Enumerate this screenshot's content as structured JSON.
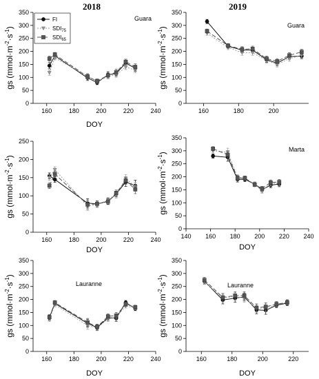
{
  "years": [
    "2018",
    "2019"
  ],
  "legend": [
    {
      "series": "FI",
      "label": "FI",
      "sub": ""
    },
    {
      "series": "SDI75",
      "label": "SDI",
      "sub": "75"
    },
    {
      "series": "SDI65",
      "label": "SDI",
      "sub": "65"
    }
  ],
  "series_styles": {
    "FI": {
      "color": "#111111",
      "dash": "",
      "marker": "circle",
      "fill": "#111111"
    },
    "SDI75": {
      "color": "#9a9a9a",
      "dash": "2,2",
      "marker": "triangle-down",
      "fill": "#9a9a9a"
    },
    "SDI65": {
      "color": "#555555",
      "dash": "6,3",
      "marker": "square",
      "fill": "#555555"
    }
  },
  "chart_data": [
    {
      "type": "line",
      "title": "Guara",
      "xlabel": "DOY",
      "ylabel": "gs (mmol·m",
      "xlim": [
        150,
        240
      ],
      "ylim": [
        0,
        350
      ],
      "xticks": [
        160,
        180,
        200,
        220,
        240
      ],
      "yticks": [
        0,
        50,
        100,
        150,
        200,
        250,
        300,
        350
      ],
      "series": [
        {
          "name": "FI",
          "x": [
            162,
            166,
            190,
            197,
            205,
            211,
            218,
            225
          ],
          "y": [
            145,
            183,
            98,
            80,
            110,
            115,
            155,
            135
          ],
          "err": [
            12,
            8,
            10,
            8,
            12,
            10,
            10,
            12
          ]
        },
        {
          "name": "SDI75",
          "x": [
            162,
            166,
            190,
            197,
            205,
            211,
            218,
            225
          ],
          "y": [
            118,
            175,
            105,
            85,
            104,
            110,
            140,
            128
          ],
          "err": [
            10,
            8,
            10,
            8,
            10,
            10,
            10,
            10
          ]
        },
        {
          "name": "SDI65",
          "x": [
            162,
            166,
            190,
            197,
            205,
            211,
            218,
            225
          ],
          "y": [
            172,
            188,
            103,
            86,
            108,
            120,
            160,
            140
          ],
          "err": [
            10,
            8,
            10,
            8,
            10,
            12,
            10,
            12
          ]
        }
      ]
    },
    {
      "type": "line",
      "title": "Guara",
      "xlabel": "",
      "ylabel": "gs (mmol·m",
      "xlim": [
        150,
        220
      ],
      "ylim": [
        0,
        350
      ],
      "xticks": [
        160,
        180,
        200
      ],
      "yticks": [
        0,
        50,
        100,
        150,
        200,
        250,
        300,
        350
      ],
      "series": [
        {
          "name": "FI",
          "x": [
            162,
            174,
            182,
            188,
            196,
            202,
            209,
            216
          ],
          "y": [
            315,
            220,
            205,
            205,
            168,
            155,
            180,
            182
          ],
          "err": [
            8,
            8,
            10,
            10,
            10,
            10,
            10,
            10
          ]
        },
        {
          "name": "SDI75",
          "x": [
            162,
            174,
            182,
            188,
            196,
            202,
            209,
            216
          ],
          "y": [
            270,
            215,
            195,
            195,
            165,
            150,
            172,
            185
          ],
          "err": [
            8,
            8,
            10,
            10,
            10,
            10,
            10,
            10
          ]
        },
        {
          "name": "SDI65",
          "x": [
            162,
            174,
            182,
            188,
            196,
            202,
            209,
            216
          ],
          "y": [
            278,
            222,
            208,
            210,
            172,
            162,
            185,
            198
          ],
          "err": [
            8,
            8,
            10,
            10,
            10,
            10,
            10,
            10
          ]
        }
      ]
    },
    {
      "type": "line",
      "title": "",
      "xlabel": "DOY",
      "ylabel": "gs (mmol·m",
      "xlim": [
        150,
        240
      ],
      "ylim": [
        0,
        250
      ],
      "xticks": [
        160,
        180,
        200,
        220,
        240
      ],
      "yticks": [
        0,
        50,
        100,
        150,
        200,
        250
      ],
      "series": [
        {
          "name": "FI",
          "x": [
            162,
            166,
            190,
            197,
            205,
            211,
            218,
            225
          ],
          "y": [
            155,
            145,
            80,
            78,
            85,
            105,
            138,
            128
          ],
          "err": [
            8,
            8,
            12,
            8,
            8,
            8,
            12,
            15
          ]
        },
        {
          "name": "SDI75",
          "x": [
            162,
            166,
            190,
            197,
            205,
            211,
            218,
            225
          ],
          "y": [
            150,
            172,
            72,
            76,
            88,
            102,
            148,
            125
          ],
          "err": [
            8,
            8,
            12,
            8,
            8,
            8,
            10,
            12
          ]
        },
        {
          "name": "SDI65",
          "x": [
            162,
            166,
            190,
            197,
            205,
            211,
            218,
            225
          ],
          "y": [
            128,
            160,
            76,
            78,
            84,
            108,
            142,
            118
          ],
          "err": [
            8,
            8,
            12,
            8,
            8,
            8,
            10,
            12
          ]
        }
      ]
    },
    {
      "type": "line",
      "title": "Marta",
      "xlabel": "DOY",
      "ylabel": "gs (mmol·m",
      "xlim": [
        140,
        240
      ],
      "ylim": [
        0,
        350
      ],
      "xticks": [
        140,
        160,
        180,
        200,
        220,
        240
      ],
      "yticks": [
        0,
        50,
        100,
        150,
        200,
        250,
        300,
        350
      ],
      "series": [
        {
          "name": "FI",
          "x": [
            162,
            174,
            182,
            188,
            196,
            202,
            209,
            216
          ],
          "y": [
            280,
            275,
            190,
            190,
            172,
            150,
            168,
            172
          ],
          "err": [
            8,
            15,
            10,
            8,
            8,
            8,
            10,
            10
          ]
        },
        {
          "name": "SDI75",
          "x": [
            162,
            174,
            182,
            188,
            196,
            202,
            209,
            216
          ],
          "y": [
            300,
            295,
            198,
            195,
            172,
            145,
            175,
            175
          ],
          "err": [
            8,
            15,
            10,
            8,
            8,
            8,
            10,
            10
          ]
        },
        {
          "name": "SDI65",
          "x": [
            162,
            174,
            182,
            188,
            196,
            202,
            209,
            216
          ],
          "y": [
            308,
            285,
            195,
            195,
            170,
            155,
            178,
            180
          ],
          "err": [
            8,
            15,
            10,
            8,
            8,
            8,
            10,
            10
          ]
        }
      ]
    },
    {
      "type": "line",
      "title": "Lauranne",
      "xlabel": "DOY",
      "ylabel": "gs (mmol·m",
      "xlim": [
        150,
        240
      ],
      "ylim": [
        0,
        350
      ],
      "xticks": [
        160,
        180,
        200,
        220,
        240
      ],
      "yticks": [
        0,
        50,
        100,
        150,
        200,
        250,
        300,
        350
      ],
      "series": [
        {
          "name": "FI",
          "x": [
            162,
            166,
            190,
            197,
            205,
            211,
            218,
            225
          ],
          "y": [
            130,
            185,
            108,
            92,
            130,
            128,
            188,
            165
          ],
          "err": [
            10,
            8,
            15,
            10,
            10,
            12,
            8,
            8
          ]
        },
        {
          "name": "SDI75",
          "x": [
            162,
            166,
            190,
            197,
            205,
            211,
            218,
            225
          ],
          "y": [
            125,
            180,
            100,
            90,
            125,
            132,
            175,
            168
          ],
          "err": [
            10,
            8,
            15,
            10,
            10,
            12,
            8,
            8
          ]
        },
        {
          "name": "SDI65",
          "x": [
            162,
            166,
            190,
            197,
            205,
            211,
            218,
            225
          ],
          "y": [
            132,
            188,
            112,
            95,
            135,
            138,
            182,
            170
          ],
          "err": [
            10,
            8,
            15,
            10,
            10,
            12,
            8,
            8
          ]
        }
      ]
    },
    {
      "type": "line",
      "title": "Lauranne",
      "xlabel": "DOY",
      "ylabel": "gs (mmol·m",
      "xlim": [
        150,
        230
      ],
      "ylim": [
        0,
        350
      ],
      "xticks": [
        160,
        180,
        200,
        220
      ],
      "yticks": [
        0,
        50,
        100,
        150,
        200,
        250,
        300,
        350
      ],
      "series": [
        {
          "name": "FI",
          "x": [
            162,
            174,
            182,
            188,
            196,
            202,
            209,
            216
          ],
          "y": [
            270,
            198,
            205,
            210,
            160,
            158,
            178,
            186
          ],
          "err": [
            10,
            15,
            15,
            15,
            15,
            15,
            10,
            10
          ]
        },
        {
          "name": "SDI75",
          "x": [
            162,
            174,
            182,
            188,
            196,
            202,
            209,
            216
          ],
          "y": [
            268,
            205,
            212,
            205,
            165,
            168,
            180,
            190
          ],
          "err": [
            10,
            15,
            15,
            15,
            15,
            15,
            10,
            10
          ]
        },
        {
          "name": "SDI65",
          "x": [
            162,
            174,
            182,
            188,
            196,
            202,
            209,
            216
          ],
          "y": [
            275,
            208,
            215,
            215,
            168,
            172,
            182,
            188
          ],
          "err": [
            10,
            15,
            15,
            15,
            15,
            15,
            10,
            10
          ]
        }
      ]
    }
  ]
}
